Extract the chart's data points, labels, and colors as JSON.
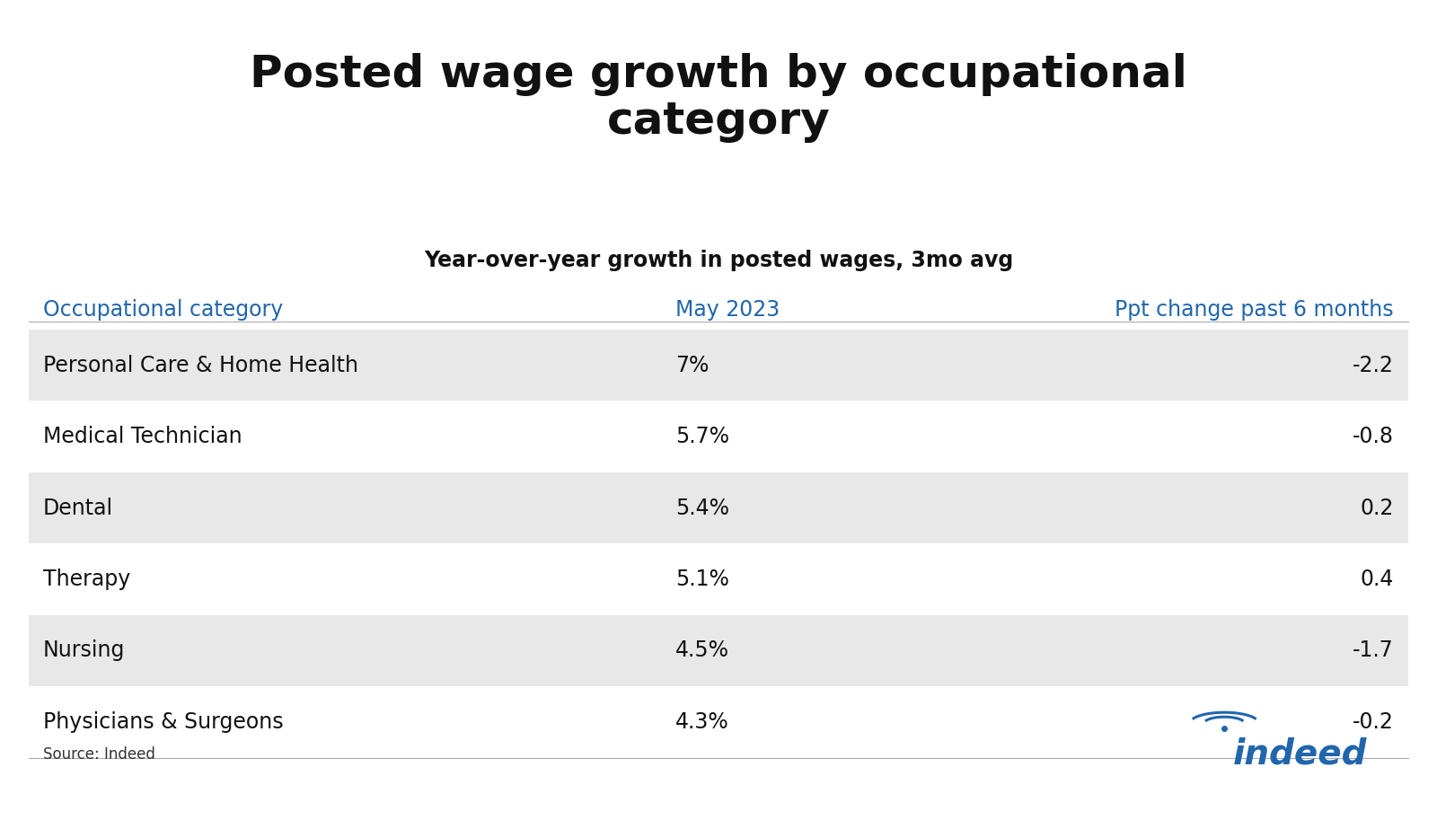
{
  "title": "Posted wage growth by occupational\ncategory",
  "subtitle": "Year-over-year growth in posted wages, 3mo avg",
  "header_col1": "Occupational category",
  "header_col2": "May 2023",
  "header_col3": "Ppt change past 6 months",
  "rows": [
    {
      "category": "Personal Care & Home Health",
      "may2023": "7%",
      "ppt": "-2.2",
      "shaded": true
    },
    {
      "category": "Medical Technician",
      "may2023": "5.7%",
      "ppt": "-0.8",
      "shaded": false
    },
    {
      "category": "Dental",
      "may2023": "5.4%",
      "ppt": "0.2",
      "shaded": true
    },
    {
      "category": "Therapy",
      "may2023": "5.1%",
      "ppt": "0.4",
      "shaded": false
    },
    {
      "category": "Nursing",
      "may2023": "4.5%",
      "ppt": "-1.7",
      "shaded": true
    },
    {
      "category": "Physicians & Surgeons",
      "may2023": "4.3%",
      "ppt": "-0.2",
      "shaded": false
    }
  ],
  "source_text": "Source: Indeed",
  "blue_color": "#2166AC",
  "shaded_color": "#E8E8E8",
  "white_color": "#FFFFFF",
  "background_color": "#FFFFFF",
  "title_fontsize": 36,
  "subtitle_fontsize": 17,
  "header_fontsize": 17,
  "row_fontsize": 17,
  "source_fontsize": 12
}
